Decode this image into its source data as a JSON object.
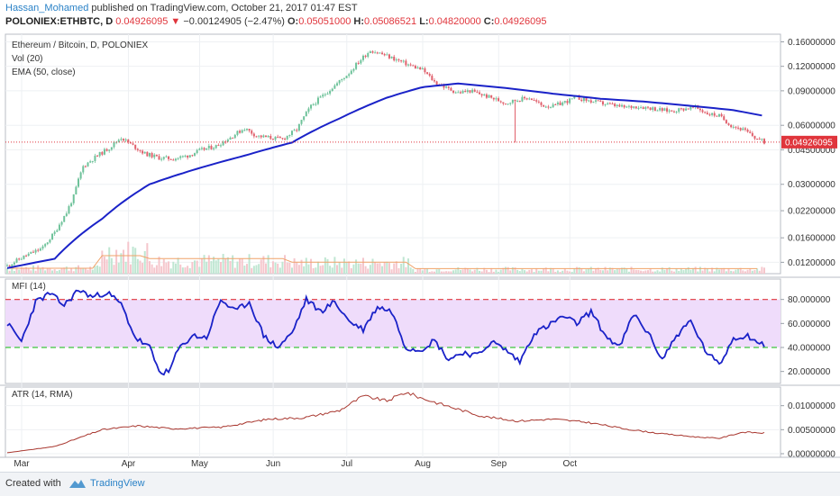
{
  "header": {
    "author": "Hassan_Mohamed",
    "published": "published on TradingView.com, October 21, 2017 01:47 EST",
    "symbol": "POLONIEX:ETHBTC, D",
    "price": "0.04926095",
    "change": "−0.00124905 (−2.47%)",
    "o_label": "O:",
    "o_val": "0.05051000",
    "h_label": "H:",
    "h_val": "0.05086521",
    "l_label": "L:",
    "l_val": "0.04820000",
    "c_label": "C:",
    "c_val": "0.04926095"
  },
  "legends": {
    "main_title": "Ethereum / Bitcoin, D, POLONIEX",
    "vol": "Vol (20)",
    "ema": "EMA (50, close)",
    "mfi": "MFI (14)",
    "atr": "ATR (14, RMA)"
  },
  "footer": {
    "created": "Created with",
    "brand": "TradingView"
  },
  "colors": {
    "up": "#6ec29a",
    "down": "#e0606c",
    "ema": "#1a22c8",
    "mfi": "#1a22c8",
    "atr": "#a8362e",
    "band": "#efdcfb",
    "red_dash": "#e0353c",
    "green_dash": "#3ec63e",
    "price_line": "#e0353c"
  },
  "chart_data": [
    {
      "type": "candlestick",
      "title": "Ethereum / Bitcoin, D, POLONIEX",
      "y_scale": "log",
      "ylim": [
        0.0105,
        0.175
      ],
      "y_ticks": [
        "0.16000000",
        "0.12000000",
        "0.09000000",
        "0.06000000",
        "0.04500000",
        "0.03000000",
        "0.02200000",
        "0.01600000",
        "0.01200000"
      ],
      "x_ticks": [
        "Mar",
        "Apr",
        "May",
        "Jun",
        "Jul",
        "Aug",
        "Sep",
        "Oct"
      ],
      "last_price_label": "0.04926095",
      "close_anchors": [
        [
          0,
          0.0115
        ],
        [
          8,
          0.013
        ],
        [
          15,
          0.0142
        ],
        [
          20,
          0.017
        ],
        [
          25,
          0.0215
        ],
        [
          28,
          0.026
        ],
        [
          32,
          0.037
        ],
        [
          38,
          0.042
        ],
        [
          43,
          0.046
        ],
        [
          48,
          0.052
        ],
        [
          52,
          0.048
        ],
        [
          58,
          0.043
        ],
        [
          64,
          0.041
        ],
        [
          70,
          0.0405
        ],
        [
          76,
          0.042
        ],
        [
          82,
          0.045
        ],
        [
          88,
          0.047
        ],
        [
          94,
          0.052
        ],
        [
          100,
          0.058
        ],
        [
          105,
          0.053
        ],
        [
          110,
          0.052
        ],
        [
          116,
          0.051
        ],
        [
          122,
          0.057
        ],
        [
          128,
          0.075
        ],
        [
          134,
          0.087
        ],
        [
          139,
          0.098
        ],
        [
          144,
          0.111
        ],
        [
          149,
          0.13
        ],
        [
          153,
          0.145
        ],
        [
          157,
          0.14
        ],
        [
          161,
          0.134
        ],
        [
          165,
          0.128
        ],
        [
          170,
          0.121
        ],
        [
          175,
          0.115
        ],
        [
          180,
          0.1
        ],
        [
          185,
          0.093
        ],
        [
          190,
          0.088
        ],
        [
          195,
          0.09
        ],
        [
          200,
          0.086
        ],
        [
          205,
          0.082
        ],
        [
          210,
          0.078
        ],
        [
          215,
          0.081
        ],
        [
          220,
          0.083
        ],
        [
          225,
          0.076
        ],
        [
          230,
          0.075
        ],
        [
          235,
          0.079
        ],
        [
          240,
          0.083
        ],
        [
          245,
          0.08
        ],
        [
          250,
          0.078
        ],
        [
          255,
          0.076
        ],
        [
          260,
          0.074
        ],
        [
          265,
          0.075
        ],
        [
          270,
          0.074
        ],
        [
          275,
          0.072
        ],
        [
          280,
          0.071
        ],
        [
          285,
          0.073
        ],
        [
          290,
          0.074
        ],
        [
          295,
          0.069
        ],
        [
          300,
          0.067
        ],
        [
          305,
          0.06
        ],
        [
          310,
          0.057
        ],
        [
          315,
          0.052
        ],
        [
          319,
          0.0493
        ]
      ]
    },
    {
      "type": "line",
      "name": "EMA (50, close)",
      "anchors": [
        [
          0,
          0.0112
        ],
        [
          20,
          0.0125
        ],
        [
          40,
          0.02
        ],
        [
          60,
          0.03
        ],
        [
          80,
          0.036
        ],
        [
          100,
          0.042
        ],
        [
          120,
          0.049
        ],
        [
          140,
          0.065
        ],
        [
          160,
          0.083
        ],
        [
          175,
          0.094
        ],
        [
          190,
          0.098
        ],
        [
          210,
          0.093
        ],
        [
          230,
          0.087
        ],
        [
          250,
          0.082
        ],
        [
          270,
          0.079
        ],
        [
          290,
          0.075
        ],
        [
          305,
          0.072
        ],
        [
          319,
          0.067
        ]
      ]
    },
    {
      "type": "line",
      "name": "MFI (14)",
      "ylim": [
        10,
        97
      ],
      "y_ticks": [
        "80.000000",
        "60.000000",
        "40.000000",
        "20.000000"
      ],
      "overbought": 80,
      "oversold": 40,
      "anchors": [
        [
          0,
          60
        ],
        [
          6,
          45
        ],
        [
          12,
          78
        ],
        [
          18,
          85
        ],
        [
          24,
          75
        ],
        [
          30,
          88
        ],
        [
          36,
          82
        ],
        [
          42,
          86
        ],
        [
          48,
          76
        ],
        [
          54,
          48
        ],
        [
          60,
          40
        ],
        [
          64,
          20
        ],
        [
          68,
          19
        ],
        [
          72,
          38
        ],
        [
          78,
          50
        ],
        [
          84,
          48
        ],
        [
          90,
          80
        ],
        [
          96,
          70
        ],
        [
          102,
          78
        ],
        [
          108,
          50
        ],
        [
          114,
          40
        ],
        [
          120,
          52
        ],
        [
          126,
          80
        ],
        [
          132,
          70
        ],
        [
          138,
          78
        ],
        [
          144,
          62
        ],
        [
          150,
          55
        ],
        [
          156,
          74
        ],
        [
          162,
          70
        ],
        [
          168,
          40
        ],
        [
          174,
          38
        ],
        [
          180,
          46
        ],
        [
          186,
          30
        ],
        [
          192,
          36
        ],
        [
          198,
          33
        ],
        [
          204,
          45
        ],
        [
          210,
          38
        ],
        [
          216,
          28
        ],
        [
          222,
          52
        ],
        [
          228,
          58
        ],
        [
          234,
          66
        ],
        [
          240,
          60
        ],
        [
          246,
          70
        ],
        [
          252,
          50
        ],
        [
          258,
          40
        ],
        [
          264,
          68
        ],
        [
          270,
          52
        ],
        [
          276,
          30
        ],
        [
          282,
          50
        ],
        [
          288,
          62
        ],
        [
          294,
          38
        ],
        [
          300,
          25
        ],
        [
          306,
          48
        ],
        [
          312,
          50
        ],
        [
          319,
          41
        ]
      ]
    },
    {
      "type": "line",
      "name": "ATR (14, RMA)",
      "ylim": [
        0,
        0.0135
      ],
      "y_ticks": [
        "0.01000000",
        "0.00500000",
        "0.00000000"
      ],
      "anchors": [
        [
          0,
          0.0002
        ],
        [
          20,
          0.0015
        ],
        [
          40,
          0.005
        ],
        [
          55,
          0.0058
        ],
        [
          70,
          0.0052
        ],
        [
          90,
          0.0055
        ],
        [
          110,
          0.0072
        ],
        [
          125,
          0.0075
        ],
        [
          140,
          0.009
        ],
        [
          150,
          0.012
        ],
        [
          160,
          0.011
        ],
        [
          168,
          0.0128
        ],
        [
          175,
          0.0115
        ],
        [
          185,
          0.01
        ],
        [
          200,
          0.0078
        ],
        [
          215,
          0.0068
        ],
        [
          230,
          0.0072
        ],
        [
          245,
          0.0065
        ],
        [
          260,
          0.0052
        ],
        [
          275,
          0.0042
        ],
        [
          290,
          0.0035
        ],
        [
          300,
          0.0032
        ],
        [
          310,
          0.0045
        ],
        [
          319,
          0.0043
        ]
      ]
    }
  ]
}
